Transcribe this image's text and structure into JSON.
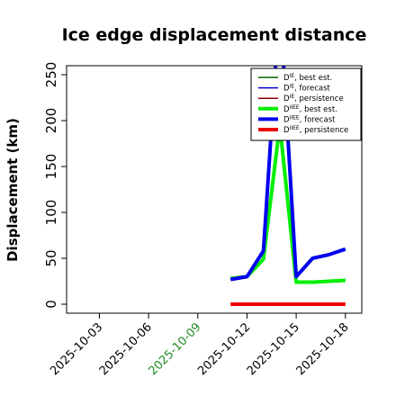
{
  "chart_data": {
    "type": "line",
    "title": "Ice edge displacement distance",
    "xlabel": "",
    "ylabel": "Displacement (km)",
    "ylim": [
      0,
      260
    ],
    "yticks": [
      0,
      50,
      100,
      150,
      200,
      250
    ],
    "xlim": [
      "2025-10-01",
      "2025-10-19"
    ],
    "xticks": [
      {
        "label": "2025-10-03",
        "date": "2025-10-03",
        "color": "#000000"
      },
      {
        "label": "2025-10-06",
        "date": "2025-10-06",
        "color": "#000000"
      },
      {
        "label": "2025-10-09",
        "date": "2025-10-09",
        "color": "#228B22"
      },
      {
        "label": "2025-10-12",
        "date": "2025-10-12",
        "color": "#000000"
      },
      {
        "label": "2025-10-15",
        "date": "2025-10-15",
        "color": "#000000"
      },
      {
        "label": "2025-10-18",
        "date": "2025-10-18",
        "color": "#000000"
      }
    ],
    "legend_position": "top-right",
    "grid": false,
    "series": [
      {
        "name": "D",
        "sup": "IE",
        "suffix": ", best est.",
        "color": "#006400",
        "width": "thin",
        "x": [],
        "y": []
      },
      {
        "name": "D",
        "sup": "IE",
        "suffix": ", forecast",
        "color": "#0000CD",
        "width": "thin",
        "x": [],
        "y": []
      },
      {
        "name": "D",
        "sup": "IE",
        "suffix": ", persistence",
        "color": "#8B0000",
        "width": "thin",
        "x": [],
        "y": []
      },
      {
        "name": "D",
        "sup": "IIEE",
        "suffix": ", best est.",
        "color": "#00EE00",
        "width": "thick",
        "x": [
          "2025-10-11",
          "2025-10-12",
          "2025-10-13",
          "2025-10-14",
          "2025-10-15",
          "2025-10-16",
          "2025-10-17",
          "2025-10-18"
        ],
        "y": [
          28,
          30,
          49,
          195,
          24,
          24,
          25,
          26
        ]
      },
      {
        "name": "D",
        "sup": "IIEE",
        "suffix": ", forecast",
        "color": "#0000EE",
        "width": "thick",
        "x": [
          "2025-10-11",
          "2025-10-12",
          "2025-10-13",
          "2025-10-14",
          "2025-10-15",
          "2025-10-16",
          "2025-10-17",
          "2025-10-18"
        ],
        "y": [
          27,
          30,
          58,
          330,
          30,
          50,
          54,
          60
        ]
      },
      {
        "name": "D",
        "sup": "IIEE",
        "suffix": ", persistence",
        "color": "#EE0000",
        "width": "thick",
        "x": [
          "2025-10-11",
          "2025-10-12",
          "2025-10-13",
          "2025-10-14",
          "2025-10-15",
          "2025-10-16",
          "2025-10-17",
          "2025-10-18"
        ],
        "y": [
          0,
          0,
          0,
          0,
          0,
          0,
          0,
          0
        ]
      }
    ]
  }
}
